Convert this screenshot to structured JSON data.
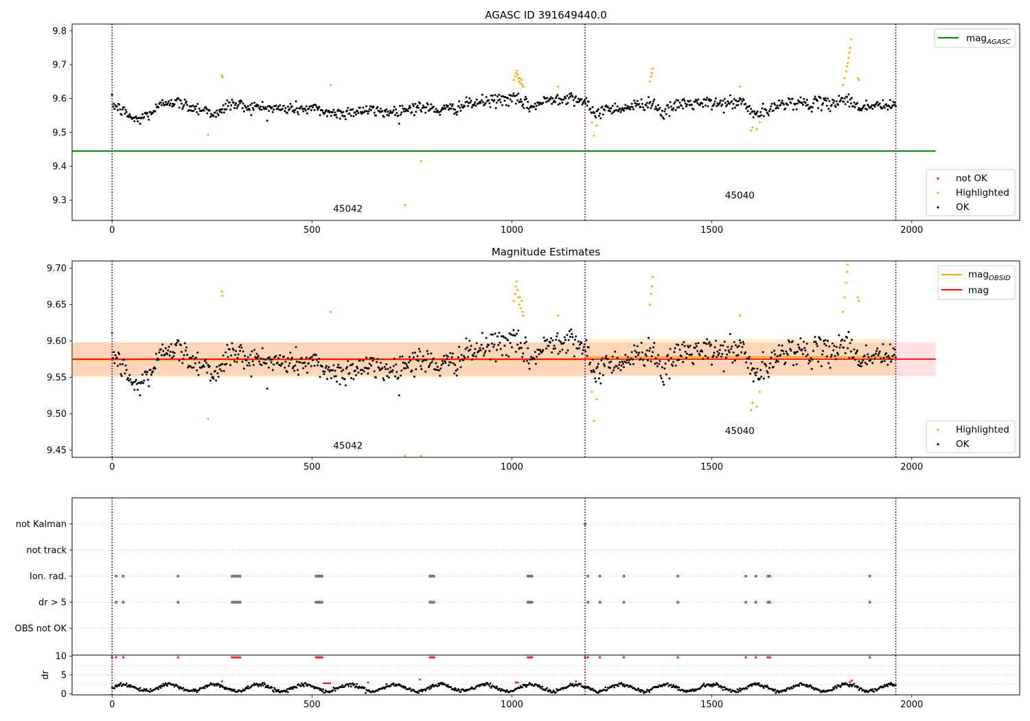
{
  "figure_title": "AGASC ID 391649440.0",
  "colors": {
    "ok": "#000000",
    "highlighted": "#ffa500",
    "not_ok": "#ff0000",
    "agasc_line": "#008000",
    "obsid_line": "#ffa500",
    "mag_line": "#ff0000",
    "divider": "#800080"
  },
  "chart_data": [
    {
      "type": "scatter",
      "title": "AGASC ID 391649440.0",
      "xlim": [
        -100,
        2270
      ],
      "ylim": [
        9.24,
        9.82
      ],
      "x_ticks": [
        0,
        500,
        1000,
        1500,
        2000
      ],
      "y_ticks": [
        9.3,
        9.4,
        9.5,
        9.6,
        9.7,
        9.8
      ],
      "obs_dividers": [
        0,
        1183,
        1960
      ],
      "obsids": [
        {
          "label": "45042",
          "x": 590,
          "y": 9.265
        },
        {
          "label": "45040",
          "x": 1570,
          "y": 9.305
        }
      ],
      "mag_agasc": 9.445,
      "mag_agasc_xrange": [
        -100,
        2060
      ],
      "legend_top": [
        {
          "label": "mag",
          "sub": "AGASC",
          "kind": "line",
          "color": "#008000"
        }
      ],
      "legend_bottom": [
        {
          "label": "not OK",
          "kind": "marker",
          "color": "#ff0000"
        },
        {
          "label": "Highlighted",
          "kind": "marker",
          "color": "#ffa500"
        },
        {
          "label": "OK",
          "kind": "marker",
          "color": "#000000"
        }
      ],
      "series": [
        {
          "name": "OK",
          "style": "ok",
          "trend": [
            [
              0,
              9.585
            ],
            [
              30,
              9.56
            ],
            [
              60,
              9.535
            ],
            [
              100,
              9.56
            ],
            [
              140,
              9.595
            ],
            [
              200,
              9.575
            ],
            [
              240,
              9.565
            ],
            [
              265,
              9.55
            ],
            [
              290,
              9.585
            ],
            [
              350,
              9.575
            ],
            [
              420,
              9.57
            ],
            [
              500,
              9.57
            ],
            [
              560,
              9.555
            ],
            [
              620,
              9.565
            ],
            [
              700,
              9.56
            ],
            [
              760,
              9.575
            ],
            [
              830,
              9.565
            ],
            [
              900,
              9.585
            ],
            [
              960,
              9.595
            ],
            [
              1000,
              9.6
            ],
            [
              1050,
              9.575
            ],
            [
              1100,
              9.6
            ],
            [
              1150,
              9.605
            ],
            [
              1183,
              9.59
            ],
            [
              1200,
              9.555
            ],
            [
              1240,
              9.57
            ],
            [
              1300,
              9.575
            ],
            [
              1330,
              9.585
            ],
            [
              1350,
              9.59
            ],
            [
              1380,
              9.555
            ],
            [
              1420,
              9.585
            ],
            [
              1480,
              9.585
            ],
            [
              1540,
              9.585
            ],
            [
              1580,
              9.59
            ],
            [
              1600,
              9.555
            ],
            [
              1640,
              9.56
            ],
            [
              1680,
              9.59
            ],
            [
              1740,
              9.585
            ],
            [
              1800,
              9.585
            ],
            [
              1830,
              9.6
            ],
            [
              1870,
              9.575
            ],
            [
              1920,
              9.58
            ],
            [
              1960,
              9.575
            ]
          ],
          "noise": 0.017
        },
        {
          "name": "Highlighted",
          "style": "highlighted",
          "points": [
            [
              240,
              9.493
            ],
            [
              275,
              9.668
            ],
            [
              276,
              9.662
            ],
            [
              546,
              9.64
            ],
            [
              733,
              9.285
            ],
            [
              773,
              9.415
            ],
            [
              1005,
              9.655
            ],
            [
              1008,
              9.665
            ],
            [
              1010,
              9.675
            ],
            [
              1012,
              9.682
            ],
            [
              1014,
              9.67
            ],
            [
              1016,
              9.66
            ],
            [
              1018,
              9.65
            ],
            [
              1020,
              9.66
            ],
            [
              1022,
              9.645
            ],
            [
              1024,
              9.655
            ],
            [
              1026,
              9.64
            ],
            [
              1028,
              9.635
            ],
            [
              1115,
              9.635
            ],
            [
              1200,
              9.53
            ],
            [
              1205,
              9.49
            ],
            [
              1212,
              9.52
            ],
            [
              1345,
              9.65
            ],
            [
              1348,
              9.665
            ],
            [
              1350,
              9.675
            ],
            [
              1352,
              9.688
            ],
            [
              1570,
              9.635
            ],
            [
              1598,
              9.505
            ],
            [
              1602,
              9.515
            ],
            [
              1612,
              9.51
            ],
            [
              1620,
              9.53
            ],
            [
              1828,
              9.64
            ],
            [
              1832,
              9.66
            ],
            [
              1836,
              9.68
            ],
            [
              1838,
              9.695
            ],
            [
              1840,
              9.705
            ],
            [
              1842,
              9.72
            ],
            [
              1844,
              9.735
            ],
            [
              1846,
              9.75
            ],
            [
              1848,
              9.775
            ],
            [
              1865,
              9.66
            ],
            [
              1868,
              9.655
            ]
          ]
        }
      ]
    },
    {
      "type": "scatter",
      "title": "Magnitude Estimates",
      "xlim": [
        -100,
        2270
      ],
      "ylim": [
        9.44,
        9.71
      ],
      "x_ticks": [
        0,
        500,
        1000,
        1500,
        2000
      ],
      "y_ticks": [
        9.45,
        9.5,
        9.55,
        9.6,
        9.65,
        9.7
      ],
      "obs_dividers": [
        0,
        1183,
        1960
      ],
      "obsids": [
        {
          "label": "45042",
          "x": 590,
          "y": 9.452
        },
        {
          "label": "45040",
          "x": 1570,
          "y": 9.472
        }
      ],
      "mag": 9.575,
      "mag_band": [
        9.552,
        9.598
      ],
      "mag_xrange": [
        -100,
        2060
      ],
      "mag_obsid": [
        {
          "x": [
            -100,
            1183
          ],
          "value": 9.574,
          "band": [
            9.55,
            9.598
          ]
        },
        {
          "x": [
            1183,
            1960
          ],
          "value": 9.578,
          "band": [
            9.553,
            9.603
          ]
        }
      ],
      "legend_top": [
        {
          "label": "mag",
          "sub": "OBSID",
          "kind": "line",
          "color": "#ffa500"
        },
        {
          "label": "mag",
          "kind": "line",
          "color": "#ff0000"
        }
      ],
      "legend_bottom": [
        {
          "label": "Highlighted",
          "kind": "marker",
          "color": "#ffa500"
        },
        {
          "label": "OK",
          "kind": "marker",
          "color": "#000000"
        }
      ],
      "series": [
        {
          "name": "OK",
          "style": "ok",
          "trend": [
            [
              0,
              9.585
            ],
            [
              30,
              9.56
            ],
            [
              60,
              9.535
            ],
            [
              100,
              9.56
            ],
            [
              140,
              9.595
            ],
            [
              200,
              9.575
            ],
            [
              240,
              9.565
            ],
            [
              265,
              9.55
            ],
            [
              290,
              9.585
            ],
            [
              350,
              9.575
            ],
            [
              420,
              9.57
            ],
            [
              500,
              9.57
            ],
            [
              560,
              9.555
            ],
            [
              620,
              9.565
            ],
            [
              700,
              9.56
            ],
            [
              760,
              9.575
            ],
            [
              830,
              9.565
            ],
            [
              900,
              9.585
            ],
            [
              960,
              9.595
            ],
            [
              1000,
              9.6
            ],
            [
              1050,
              9.575
            ],
            [
              1100,
              9.6
            ],
            [
              1150,
              9.605
            ],
            [
              1183,
              9.59
            ],
            [
              1200,
              9.555
            ],
            [
              1240,
              9.57
            ],
            [
              1300,
              9.575
            ],
            [
              1330,
              9.585
            ],
            [
              1350,
              9.59
            ],
            [
              1380,
              9.555
            ],
            [
              1420,
              9.585
            ],
            [
              1480,
              9.585
            ],
            [
              1540,
              9.585
            ],
            [
              1580,
              9.59
            ],
            [
              1600,
              9.555
            ],
            [
              1640,
              9.56
            ],
            [
              1680,
              9.59
            ],
            [
              1740,
              9.585
            ],
            [
              1800,
              9.585
            ],
            [
              1830,
              9.6
            ],
            [
              1870,
              9.575
            ],
            [
              1920,
              9.58
            ],
            [
              1960,
              9.575
            ]
          ],
          "noise": 0.017
        },
        {
          "name": "Highlighted",
          "style": "highlighted",
          "points": [
            [
              240,
              9.493
            ],
            [
              275,
              9.668
            ],
            [
              276,
              9.662
            ],
            [
              546,
              9.64
            ],
            [
              733,
              9.442
            ],
            [
              773,
              9.442
            ],
            [
              1005,
              9.655
            ],
            [
              1008,
              9.665
            ],
            [
              1010,
              9.675
            ],
            [
              1012,
              9.682
            ],
            [
              1014,
              9.67
            ],
            [
              1016,
              9.66
            ],
            [
              1018,
              9.65
            ],
            [
              1020,
              9.66
            ],
            [
              1022,
              9.645
            ],
            [
              1024,
              9.655
            ],
            [
              1026,
              9.64
            ],
            [
              1028,
              9.635
            ],
            [
              1115,
              9.635
            ],
            [
              1200,
              9.53
            ],
            [
              1205,
              9.49
            ],
            [
              1212,
              9.52
            ],
            [
              1345,
              9.65
            ],
            [
              1348,
              9.665
            ],
            [
              1350,
              9.675
            ],
            [
              1352,
              9.688
            ],
            [
              1570,
              9.635
            ],
            [
              1598,
              9.505
            ],
            [
              1602,
              9.515
            ],
            [
              1612,
              9.51
            ],
            [
              1620,
              9.53
            ],
            [
              1828,
              9.64
            ],
            [
              1832,
              9.66
            ],
            [
              1836,
              9.68
            ],
            [
              1838,
              9.695
            ],
            [
              1840,
              9.705
            ],
            [
              1865,
              9.66
            ],
            [
              1868,
              9.655
            ]
          ]
        }
      ]
    },
    {
      "type": "scatter",
      "title": "",
      "xlim": [
        -100,
        2270
      ],
      "categories": [
        "not Kalman",
        "not track",
        "Ion. rad.",
        "dr > 5",
        "OBS not OK"
      ],
      "obs_dividers": [
        0,
        1183,
        1960
      ],
      "flag_points": {
        "not Kalman": [
          1183
        ],
        "not track": [],
        "Ion. rad.": [
          10,
          28,
          165,
          300,
          305,
          310,
          315,
          320,
          510,
          515,
          520,
          525,
          795,
          800,
          805,
          1040,
          1045,
          1050,
          1190,
          1220,
          1280,
          1415,
          1585,
          1610,
          1640,
          1645,
          1895
        ],
        "dr > 5": [
          10,
          28,
          165,
          300,
          305,
          310,
          315,
          320,
          510,
          515,
          520,
          525,
          795,
          800,
          805,
          1040,
          1045,
          1050,
          1190,
          1220,
          1280,
          1415,
          1585,
          1610,
          1640,
          1645,
          1895
        ],
        "OBS not OK": []
      }
    },
    {
      "type": "scatter",
      "title": "",
      "xlim": [
        -100,
        2270
      ],
      "ylim": [
        -0.3,
        10.3
      ],
      "y_ticks": [
        0,
        5,
        10
      ],
      "ylabel": "dr",
      "x_ticks": [
        0,
        500,
        1000,
        1500,
        2000
      ],
      "obs_dividers": [
        0,
        1183,
        1960
      ],
      "clipped_x": [
        0,
        10,
        28,
        165,
        300,
        305,
        310,
        315,
        320,
        510,
        515,
        520,
        525,
        795,
        800,
        805,
        1040,
        1045,
        1050,
        1183,
        1190,
        1220,
        1280,
        1415,
        1585,
        1610,
        1640,
        1645,
        1895
      ],
      "red_points": [
        [
          275,
          3.3
        ],
        [
          530,
          2.8
        ],
        [
          535,
          2.8
        ],
        [
          540,
          2.8
        ],
        [
          545,
          2.8
        ],
        [
          640,
          3.0
        ],
        [
          770,
          3.8
        ],
        [
          1010,
          3.0
        ],
        [
          1015,
          3.0
        ],
        [
          1160,
          3.3
        ],
        [
          1845,
          3.1
        ],
        [
          1850,
          3.5
        ]
      ]
    }
  ]
}
